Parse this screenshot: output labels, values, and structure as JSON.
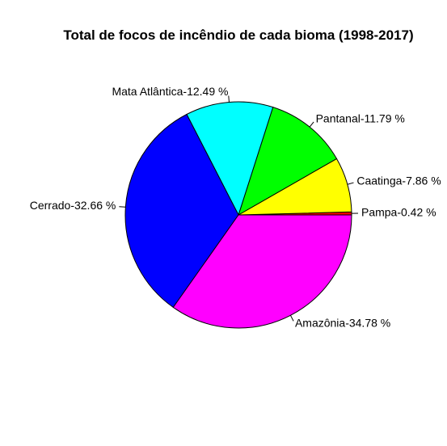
{
  "chart_data": {
    "type": "pie",
    "title": "Total de focos de incêndio de cada bioma (1998-2017)",
    "slices": [
      {
        "label": "Pampa-0.42 %",
        "name": "Pampa",
        "value": 0.42,
        "color": "#FF0000"
      },
      {
        "label": "Caatinga-7.86 %",
        "name": "Caatinga",
        "value": 7.86,
        "color": "#FFFF00"
      },
      {
        "label": "Pantanal-11.79 %",
        "name": "Pantanal",
        "value": 11.79,
        "color": "#00FF00"
      },
      {
        "label": "Mata Atlântica-12.49 %",
        "name": "Mata Atlântica",
        "value": 12.49,
        "color": "#00FFFF"
      },
      {
        "label": "Cerrado-32.66 %",
        "name": "Cerrado",
        "value": 32.66,
        "color": "#0000FF"
      },
      {
        "label": "Amazônia-34.78 %",
        "name": "Amazônia",
        "value": 34.78,
        "color": "#FF00FF"
      }
    ],
    "legend": "none",
    "direction": "counterclockwise"
  }
}
